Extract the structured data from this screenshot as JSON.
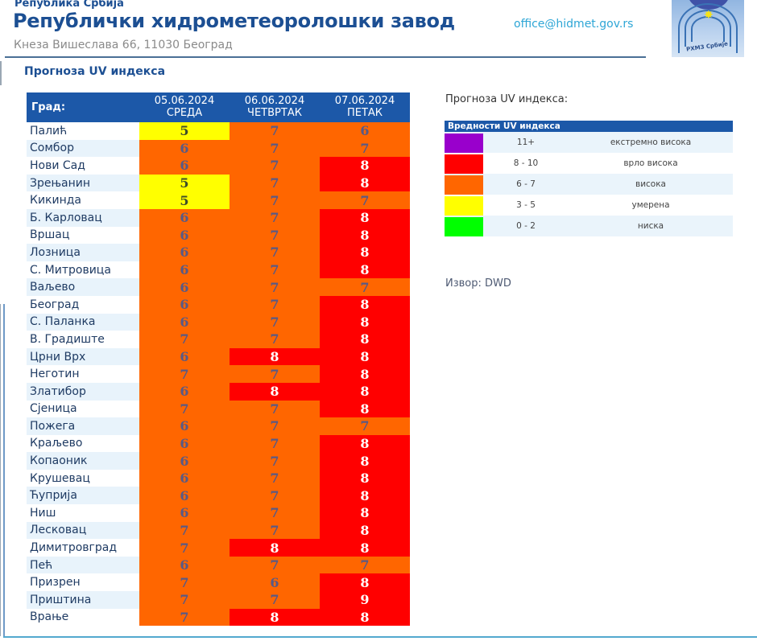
{
  "header": {
    "superscript": "Република Србија",
    "title": "Републички хидрометеоролошки завод",
    "address": "Кнеза Вишеслава 66, 11030 Београд",
    "email": "office@hidmet.gov.rs",
    "logo_text": "РХМЗ Србије",
    "logo_alt": "hidmet-logo"
  },
  "section_title": "Прогноза UV индекса",
  "table": {
    "city_header": "Град:",
    "days": [
      {
        "date": "05.06.2024",
        "weekday": "СРЕДА"
      },
      {
        "date": "06.06.2024",
        "weekday": "ЧЕТВРТАК"
      },
      {
        "date": "07.06.2024",
        "weekday": "ПЕТАК"
      }
    ],
    "rows": [
      {
        "city": "Палић",
        "values": [
          "5",
          "7",
          "6"
        ]
      },
      {
        "city": "Сомбор",
        "values": [
          "6",
          "7",
          "7"
        ]
      },
      {
        "city": "Нови Сад",
        "values": [
          "6",
          "7",
          "8"
        ]
      },
      {
        "city": "Зрењанин",
        "values": [
          "5",
          "7",
          "8"
        ]
      },
      {
        "city": "Кикинда",
        "values": [
          "5",
          "7",
          "7"
        ]
      },
      {
        "city": "Б. Карловац",
        "values": [
          "6",
          "7",
          "8"
        ]
      },
      {
        "city": "Вршац",
        "values": [
          "6",
          "7",
          "8"
        ]
      },
      {
        "city": "Лозница",
        "values": [
          "6",
          "7",
          "8"
        ]
      },
      {
        "city": "С. Митровица",
        "values": [
          "6",
          "7",
          "8"
        ]
      },
      {
        "city": "Ваљево",
        "values": [
          "6",
          "7",
          "7"
        ]
      },
      {
        "city": "Београд",
        "values": [
          "6",
          "7",
          "8"
        ]
      },
      {
        "city": "С. Паланка",
        "values": [
          "6",
          "7",
          "8"
        ]
      },
      {
        "city": "В. Градиште",
        "values": [
          "7",
          "7",
          "8"
        ]
      },
      {
        "city": "Црни Врх",
        "values": [
          "6",
          "8",
          "8"
        ]
      },
      {
        "city": "Неготин",
        "values": [
          "7",
          "7",
          "8"
        ]
      },
      {
        "city": "Златибор",
        "values": [
          "6",
          "8",
          "8"
        ]
      },
      {
        "city": "Сјеница",
        "values": [
          "7",
          "7",
          "8"
        ]
      },
      {
        "city": "Пожега",
        "values": [
          "6",
          "7",
          "7"
        ]
      },
      {
        "city": "Краљево",
        "values": [
          "6",
          "7",
          "8"
        ]
      },
      {
        "city": "Копаоник",
        "values": [
          "6",
          "7",
          "8"
        ]
      },
      {
        "city": "Крушевац",
        "values": [
          "6",
          "7",
          "8"
        ]
      },
      {
        "city": "Ћуприја",
        "values": [
          "6",
          "7",
          "8"
        ]
      },
      {
        "city": "Ниш",
        "values": [
          "6",
          "7",
          "8"
        ]
      },
      {
        "city": "Лесковац",
        "values": [
          "7",
          "7",
          "8"
        ]
      },
      {
        "city": "Димитровград",
        "values": [
          "7",
          "8",
          "8"
        ]
      },
      {
        "city": "Пећ",
        "values": [
          "6",
          "7",
          "7"
        ]
      },
      {
        "city": "Призрен",
        "values": [
          "7",
          "6",
          "8"
        ]
      },
      {
        "city": "Приштина",
        "values": [
          "7",
          "7",
          "9"
        ]
      },
      {
        "city": "Врање",
        "values": [
          "7",
          "8",
          "8"
        ]
      }
    ]
  },
  "legend": {
    "heading": "Прогноза UV индекса:",
    "title": "Вредности UV индекса",
    "items": [
      {
        "range": "11+",
        "label": "екстремно висока",
        "color": "#9900cc"
      },
      {
        "range": "8 - 10",
        "label": "врло висока",
        "color": "#ff0000"
      },
      {
        "range": "6 - 7",
        "label": "висока",
        "color": "#ff6600"
      },
      {
        "range": "3 - 5",
        "label": "умерена",
        "color": "#ffff00"
      },
      {
        "range": "0 - 2",
        "label": "ниска",
        "color": "#00ff00"
      }
    ]
  },
  "source": "Извор: DWD",
  "colors": {
    "brand_blue": "#1c58a8",
    "title_blue": "#1c4f93",
    "email_cyan": "#2ea6d6",
    "extreme": "#9900cc",
    "very_high": "#ff0000",
    "high": "#ff6600",
    "moderate": "#ffff00",
    "low": "#00ff00"
  }
}
